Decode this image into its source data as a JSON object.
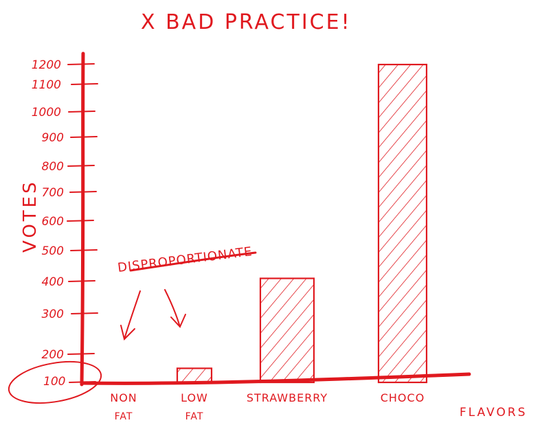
{
  "title": "X BAD PRACTICE!",
  "annotation": "DISPROPORTIONATE",
  "colors": {
    "ink": "#e0191f"
  },
  "chart_data": {
    "type": "bar",
    "title": "X BAD PRACTICE!",
    "xlabel": "FLAVORS",
    "ylabel": "VOTES",
    "categories": [
      [
        "NON",
        "FAT"
      ],
      [
        "LOW",
        "FAT"
      ],
      [
        "STRAWBERRY"
      ],
      [
        "CHOCO"
      ]
    ],
    "values": [
      100,
      150,
      410,
      1200
    ],
    "yticks": [
      100,
      200,
      300,
      400,
      500,
      600,
      700,
      800,
      900,
      1000,
      1100,
      1200
    ],
    "ylim": [
      100,
      1200
    ],
    "grid": false,
    "legend": "none",
    "highlighted_tick": 100
  }
}
